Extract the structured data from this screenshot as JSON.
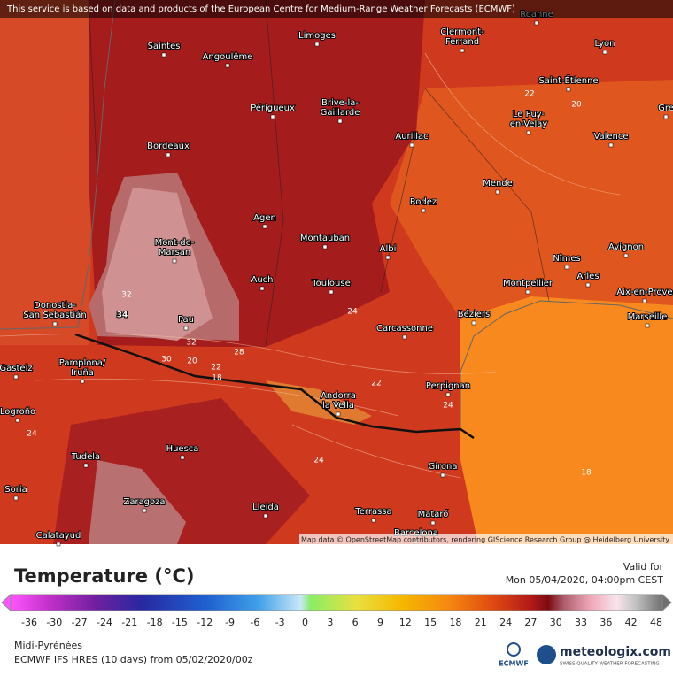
{
  "notice": "This service is based on data and products of the European Centre for Medium-Range Weather Forecasts (ECMWF)",
  "attribution": "Map data © OpenStreetMap contributors, rendering GIScience Research Group @ Heidelberg University",
  "cities": [
    [
      "Roanne"
    ],
    [
      "Saintes"
    ],
    [
      "Angoulême"
    ],
    [
      "Limoges"
    ],
    [
      "Clermont-",
      "Ferrand"
    ],
    [
      "Lyon"
    ],
    [
      "Saint-Étienne"
    ],
    [
      "Périgueux"
    ],
    [
      "Brive-la-",
      "Gaillarde"
    ],
    [
      "Aurillac"
    ],
    [
      "Le Puy-",
      "en-Velay"
    ],
    [
      "Valence"
    ],
    [
      "Gre"
    ],
    [
      "Bordeaux"
    ],
    [
      "Mende"
    ],
    [
      "Rodez"
    ],
    [
      "Agen"
    ],
    [
      "Mont-de-",
      "Marsan"
    ],
    [
      "Montauban"
    ],
    [
      "Albi"
    ],
    [
      "Avignon"
    ],
    [
      "Nîmes"
    ],
    [
      "Arles"
    ],
    [
      "Auch"
    ],
    [
      "Toulouse"
    ],
    [
      "Montpellier"
    ],
    [
      "Aix-en-Prove"
    ],
    [
      "Donostia-",
      "San Sebastián"
    ],
    [
      "Pau"
    ],
    [
      "Béziers"
    ],
    [
      "Marseille"
    ],
    [
      "Carcassonne"
    ],
    [
      "Gasteiz"
    ],
    [
      "Pamplona/",
      "Iruña"
    ],
    [
      "Perpignan"
    ],
    [
      "Andorra",
      "la Vella"
    ],
    [
      "Logroño"
    ],
    [
      "Huesca"
    ],
    [
      "Girona"
    ],
    [
      "Tudela"
    ],
    [
      "Soria"
    ],
    [
      "Zaragoza"
    ],
    [
      "Lleida"
    ],
    [
      "Terrassa"
    ],
    [
      "Mataró"
    ],
    [
      "Barcelona"
    ],
    [
      "Calatayud"
    ]
  ],
  "contour_labels": [
    34,
    32,
    32,
    30,
    28,
    22,
    20,
    18,
    24,
    22,
    20,
    24,
    22,
    24,
    24,
    18
  ],
  "legend": {
    "title": "Temperature (°C)",
    "ticks": [
      -36,
      -30,
      -27,
      -24,
      -21,
      -18,
      -15,
      -12,
      -9,
      -6,
      -3,
      0,
      3,
      6,
      9,
      12,
      15,
      18,
      21,
      24,
      27,
      30,
      33,
      36,
      42,
      48
    ]
  },
  "valid": {
    "label": "Valid for",
    "time": "Mon 05/04/2020, 04:00pm CEST"
  },
  "footer": {
    "region": "Midi-Pyrénées",
    "model": "ECMWF IFS HRES (10 days)  from  05/02/2020/00z"
  },
  "logos": {
    "ecmwf": "ECMWF",
    "site": "meteologix.com",
    "tagline": "SWISS QUALITY WEATHER FORECASTING"
  }
}
